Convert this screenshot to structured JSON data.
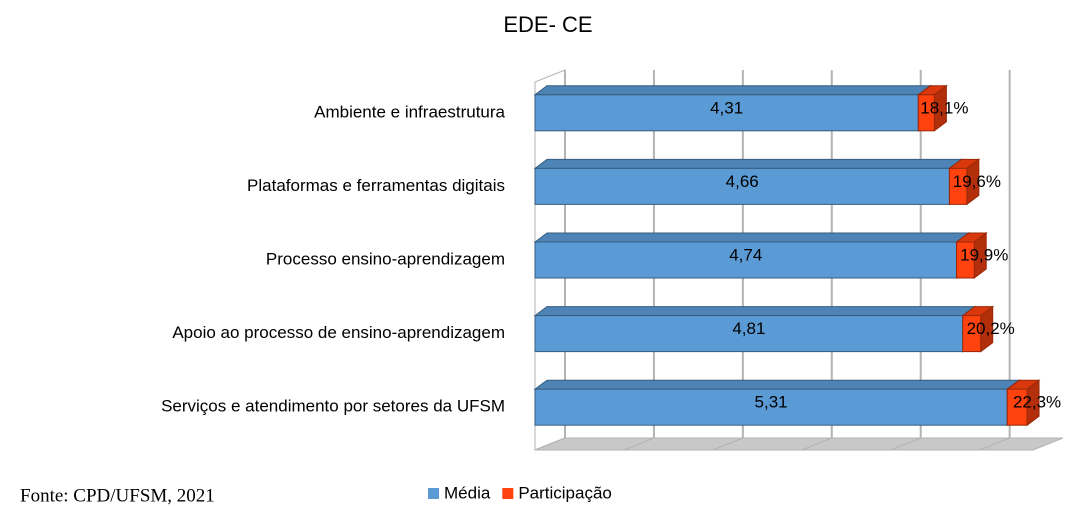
{
  "chart_data": {
    "type": "bar",
    "orientation": "horizontal",
    "stacked": true,
    "three_d": true,
    "title": "EDE- CE",
    "categories": [
      "Ambiente e infraestrutura",
      "Plataformas e ferramentas digitais",
      "Processo ensino-aprendizagem",
      "Apoio ao processo de ensino-aprendizagem",
      "Serviços e atendimento por setores da UFSM"
    ],
    "series": [
      {
        "name": "Média",
        "color": "#5b9bd5",
        "values": [
          4.31,
          4.66,
          4.74,
          4.81,
          5.31
        ],
        "value_labels": [
          "4,31",
          "4,66",
          "4,74",
          "4,81",
          "5,31"
        ]
      },
      {
        "name": "Participação",
        "color": "#ff420e",
        "values": [
          0.181,
          0.196,
          0.199,
          0.202,
          0.223
        ],
        "value_labels": [
          "18,1%",
          "19,6%",
          "19,9%",
          "20,2%",
          "22,3%"
        ]
      }
    ],
    "xlim": [
      0,
      5.6
    ],
    "xticks": [
      0,
      1,
      2,
      3,
      4,
      5
    ],
    "grid": true,
    "legend": "bottom",
    "source": "Fonte: CPD/UFSM, 2021"
  }
}
